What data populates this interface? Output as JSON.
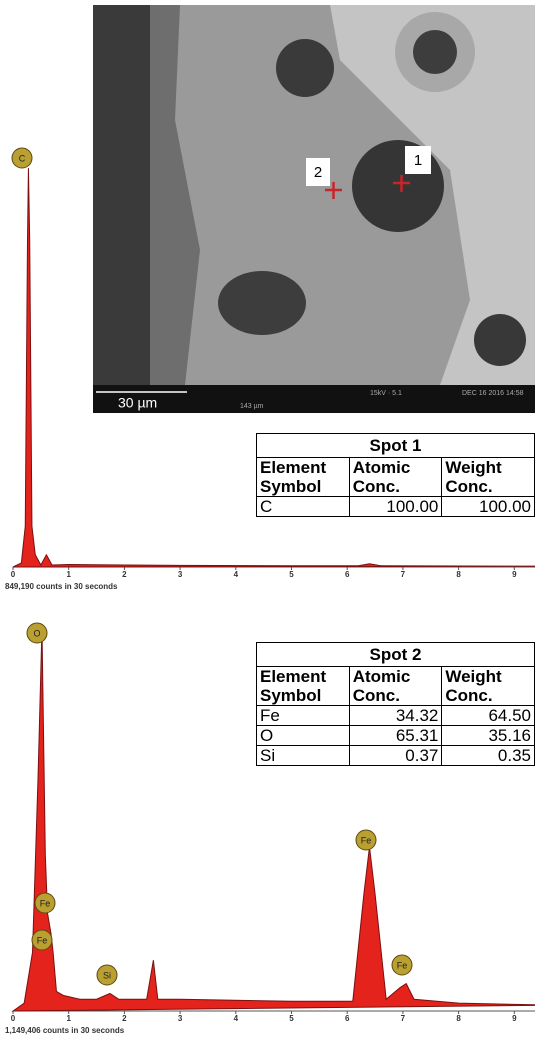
{
  "image": {
    "scale_bar": "30 µm",
    "field_width": "143 µm",
    "voltage": "15kV · 5.1",
    "timestamp": "DEC 16 2016 14:58",
    "spots": [
      "1",
      "2"
    ]
  },
  "chart_data": [
    {
      "type": "line",
      "caption": "849,190 counts in 30 seconds",
      "color": "#e3231c",
      "xlim": [
        0,
        9.7
      ],
      "xticks": [
        0,
        1,
        2,
        3,
        4,
        5,
        6,
        7,
        8,
        9
      ],
      "ylim": [
        0,
        100
      ],
      "annotations": [
        "C"
      ],
      "x": [
        0,
        0.15,
        0.22,
        0.26,
        0.277,
        0.3,
        0.34,
        0.4,
        0.5,
        0.6,
        0.7,
        1,
        2,
        3,
        5,
        6.2,
        6.4,
        6.6,
        9.7
      ],
      "values": [
        0,
        1,
        10,
        80,
        98,
        80,
        10,
        3,
        0.5,
        3,
        0.5,
        0.6,
        0.5,
        0.4,
        0.3,
        0.3,
        0.8,
        0.3,
        0.2
      ]
    },
    {
      "type": "line",
      "caption": "1,149,406 counts in 30 seconds",
      "color": "#e3231c",
      "xlim": [
        0,
        9.7
      ],
      "xticks": [
        0,
        1,
        2,
        3,
        4,
        5,
        6,
        7,
        8,
        9
      ],
      "ylim": [
        0,
        100
      ],
      "annotations": [
        "O",
        "Fe",
        "Fe",
        "Si",
        "Fe",
        "Fe"
      ],
      "x": [
        0,
        0.2,
        0.35,
        0.45,
        0.52,
        0.58,
        0.62,
        0.68,
        0.72,
        0.78,
        0.9,
        1.2,
        1.5,
        1.74,
        1.9,
        2.4,
        2.52,
        2.6,
        3,
        5,
        6.1,
        6.3,
        6.4,
        6.5,
        6.7,
        6.95,
        7.06,
        7.2,
        8,
        9.7
      ],
      "values": [
        0,
        2,
        15,
        60,
        98,
        40,
        25,
        20,
        15,
        5,
        4,
        3,
        3,
        4.5,
        3,
        3,
        13,
        3,
        3,
        2.5,
        2.5,
        30,
        42,
        30,
        3,
        6,
        7,
        3,
        2,
        1.5
      ]
    }
  ],
  "tables": [
    {
      "title": "Spot 1",
      "header": [
        "Element Symbol",
        "Atomic Conc.",
        "Weight Conc."
      ],
      "rows": [
        [
          "C",
          "100.00",
          "100.00"
        ]
      ]
    },
    {
      "title": "Spot 2",
      "header": [
        "Element Symbol",
        "Atomic Conc.",
        "Weight Conc."
      ],
      "rows": [
        [
          "Fe",
          "34.32",
          "64.50"
        ],
        [
          "O",
          "65.31",
          "35.16"
        ],
        [
          "Si",
          "0.37",
          "0.35"
        ]
      ]
    }
  ]
}
